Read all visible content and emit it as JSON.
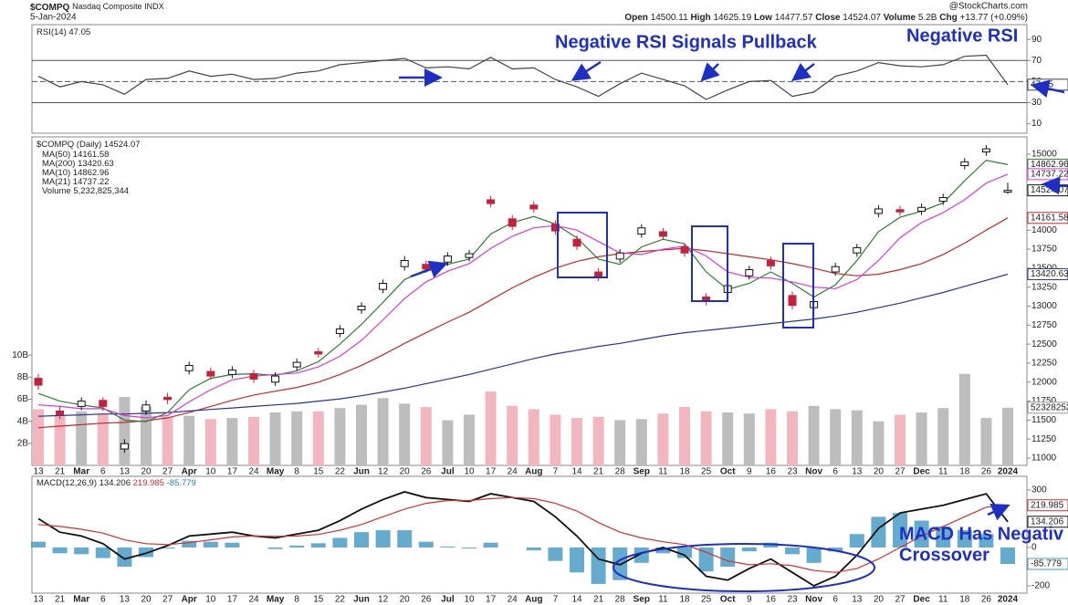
{
  "header": {
    "symbol": "$COMPQ",
    "name": "Nasdaq Composite INDX",
    "date": "5-Jan-2024",
    "source": "@StockCharts.com",
    "open_label": "Open",
    "high_label": "High",
    "low_label": "Low",
    "close_label": "Close",
    "volume_label": "Volume",
    "volume": "5.2B",
    "change_label": "Chg",
    "change": "+13.77 (+0.09%)"
  },
  "chart_data": [
    {
      "type": "line",
      "series": [
        {
          "name": "RSI(14)",
          "color": "#444444",
          "values": [
            55,
            45,
            50,
            47,
            38,
            52,
            53,
            60,
            55,
            57,
            52,
            53,
            58,
            60,
            66,
            68,
            70,
            72,
            63,
            64,
            62,
            73,
            62,
            63,
            52,
            45,
            36,
            48,
            58,
            52,
            46,
            33,
            42,
            50,
            51,
            36,
            40,
            55,
            60,
            68,
            65,
            64,
            66,
            74,
            75,
            47.05
          ]
        }
      ],
      "ylim": [
        1,
        104
      ],
      "yticks": [
        90,
        70,
        50,
        30,
        10
      ],
      "reference_lines": [
        {
          "value": 70
        },
        {
          "value": 50,
          "dashed": true
        },
        {
          "value": 30
        }
      ],
      "annotations": [
        "Negative RSI Signals Pullback",
        "Negative RSI"
      ]
    },
    {
      "type": "candlestick",
      "title": "$COMPQ (Daily)",
      "categories": [
        "13",
        "21",
        "Mar",
        "6",
        "13",
        "20",
        "27",
        "Apr",
        "10",
        "17",
        "24",
        "May",
        "8",
        "15",
        "22",
        "Jun",
        "12",
        "20",
        "26",
        "Jul",
        "10",
        "17",
        "24",
        "Aug",
        "7",
        "14",
        "21",
        "28",
        "Sep",
        "11",
        "18",
        "25",
        "Oct",
        "9",
        "16",
        "23",
        "Nov",
        "6",
        "13",
        "20",
        "27",
        "Dec",
        "11",
        "18",
        "26",
        "2024"
      ],
      "open": [
        12050,
        11620,
        11680,
        11760,
        11120,
        11620,
        11800,
        12150,
        12140,
        12100,
        12110,
        12000,
        12200,
        12400,
        12640,
        12950,
        13220,
        13520,
        13550,
        13580,
        13640,
        14400,
        14150,
        14330,
        14080,
        13880,
        13450,
        13620,
        13950,
        13980,
        13780,
        13120,
        13180,
        13400,
        13600,
        13140,
        12980,
        13450,
        13700,
        14220,
        14270,
        14250,
        14380,
        14850,
        15030,
        14500.11
      ],
      "high": [
        12110,
        11680,
        11800,
        11800,
        11250,
        11760,
        11860,
        12270,
        12190,
        12210,
        12160,
        12130,
        12310,
        12450,
        12750,
        13050,
        13350,
        13660,
        13600,
        13710,
        13740,
        14450,
        14200,
        14380,
        14130,
        13930,
        13500,
        13750,
        14080,
        14030,
        13830,
        13170,
        13320,
        13530,
        13650,
        13190,
        13110,
        13570,
        13820,
        14330,
        14320,
        14350,
        14480,
        14950,
        15120,
        14625.19
      ],
      "low": [
        11900,
        11510,
        11630,
        11620,
        11070,
        11570,
        11710,
        12100,
        12030,
        12050,
        11990,
        11950,
        12150,
        12320,
        12590,
        12900,
        13170,
        13470,
        13440,
        13530,
        13590,
        14300,
        14000,
        14230,
        13940,
        13740,
        13330,
        13570,
        13900,
        13870,
        13650,
        13010,
        13130,
        13350,
        13480,
        12960,
        12930,
        13400,
        13650,
        14170,
        14190,
        14200,
        14330,
        14800,
        14980,
        14477.57
      ],
      "close": [
        11960,
        11570,
        11750,
        11680,
        11190,
        11700,
        11770,
        12220,
        12080,
        12160,
        12040,
        12080,
        12260,
        12370,
        12700,
        13000,
        13300,
        13600,
        13490,
        13660,
        13690,
        14350,
        14050,
        14280,
        13990,
        13790,
        13380,
        13700,
        14030,
        13920,
        13700,
        13060,
        13270,
        13480,
        13530,
        13010,
        13060,
        13520,
        13770,
        14280,
        14240,
        14300,
        14430,
        14900,
        15070,
        14524.07
      ],
      "up_color": "#ffffff",
      "down_color": "#c4223c",
      "ma": [
        {
          "name": "MA(50)",
          "color": "#c62828",
          "values": [
            11400,
            11420,
            11440,
            11460,
            11470,
            11490,
            11530,
            11600,
            11680,
            11760,
            11830,
            11880,
            11930,
            12000,
            12100,
            12220,
            12360,
            12510,
            12650,
            12790,
            12920,
            13080,
            13240,
            13380,
            13500,
            13590,
            13650,
            13690,
            13720,
            13740,
            13760,
            13730,
            13690,
            13650,
            13610,
            13560,
            13500,
            13430,
            13400,
            13420,
            13480,
            13560,
            13680,
            13830,
            14000,
            14161.58
          ]
        },
        {
          "name": "MA(200)",
          "color": "#283593",
          "values": [
            11550,
            11560,
            11570,
            11580,
            11580,
            11590,
            11600,
            11620,
            11640,
            11660,
            11680,
            11700,
            11720,
            11750,
            11780,
            11820,
            11870,
            11920,
            11980,
            12040,
            12100,
            12170,
            12240,
            12310,
            12370,
            12420,
            12470,
            12510,
            12560,
            12610,
            12650,
            12680,
            12710,
            12740,
            12770,
            12800,
            12830,
            12870,
            12920,
            12980,
            13040,
            13110,
            13180,
            13260,
            13340,
            13420.63
          ]
        },
        {
          "name": "MA(10)",
          "color": "#2e7d32",
          "values": [
            11850,
            11750,
            11700,
            11660,
            11500,
            11480,
            11600,
            11900,
            12050,
            12100,
            12110,
            12090,
            12150,
            12270,
            12500,
            12760,
            13050,
            13350,
            13480,
            13550,
            13620,
            13950,
            14100,
            14180,
            14080,
            13900,
            13620,
            13550,
            13780,
            13880,
            13820,
            13450,
            13220,
            13300,
            13450,
            13300,
            13120,
            13280,
            13600,
            13980,
            14170,
            14250,
            14360,
            14650,
            14920,
            14862.96
          ]
        },
        {
          "name": "MA(21)",
          "color": "#d63ad6",
          "values": [
            11700,
            11680,
            11650,
            11650,
            11560,
            11530,
            11560,
            11740,
            11900,
            12030,
            12080,
            12100,
            12120,
            12200,
            12340,
            12550,
            12820,
            13100,
            13320,
            13460,
            13560,
            13760,
            13920,
            14030,
            14060,
            14000,
            13850,
            13700,
            13680,
            13750,
            13790,
            13660,
            13450,
            13380,
            13370,
            13320,
            13250,
            13230,
            13350,
            13600,
            13900,
            14100,
            14230,
            14400,
            14620,
            14737.22
          ]
        }
      ],
      "volume": {
        "name": "Volume",
        "legend_value_label": "5,232,825,344",
        "up_color": "#bdbdbd",
        "down_color": "#f2b6bf",
        "values": [
          5100000000,
          4600000000,
          4900000000,
          4700000000,
          6200000000,
          5300000000,
          4400000000,
          4500000000,
          4200000000,
          4300000000,
          4400000000,
          4800000000,
          4900000000,
          4900000000,
          5200000000,
          5500000000,
          6100000000,
          5600000000,
          5300000000,
          4100000000,
          4600000000,
          6700000000,
          5400000000,
          5100000000,
          4600000000,
          4300000000,
          4400000000,
          4100000000,
          4200000000,
          4700000000,
          5300000000,
          4900000000,
          4800000000,
          4700000000,
          5100000000,
          4900000000,
          5400000000,
          5100000000,
          5000000000,
          4000000000,
          4600000000,
          4800000000,
          5200000000,
          8300000000,
          4300000000,
          5232825344
        ],
        "ylim": [
          0,
          29800000000
        ],
        "yticks": [
          {
            "value": 2000000000,
            "label": "2B"
          },
          {
            "value": 4000000000,
            "label": "4B"
          },
          {
            "value": 6000000000,
            "label": "6B"
          },
          {
            "value": 8000000000,
            "label": "8B"
          },
          {
            "value": 10000000000,
            "label": "10B"
          }
        ]
      },
      "ylim": [
        10904,
        15228
      ],
      "yticks": [
        15000,
        14000,
        13750,
        13500,
        13250,
        13000,
        12750,
        12500,
        12250,
        12000,
        11750,
        11500,
        11250,
        11000
      ]
    },
    {
      "type": "macd",
      "categories": [
        "13",
        "21",
        "Mar",
        "6",
        "13",
        "20",
        "27",
        "Apr",
        "10",
        "17",
        "24",
        "May",
        "8",
        "15",
        "22",
        "Jun",
        "12",
        "20",
        "26",
        "Jul",
        "10",
        "17",
        "24",
        "Aug",
        "7",
        "14",
        "21",
        "28",
        "Sep",
        "11",
        "18",
        "25",
        "Oct",
        "9",
        "16",
        "23",
        "Nov",
        "6",
        "13",
        "20",
        "27",
        "Dec",
        "11",
        "18",
        "26",
        "2024"
      ],
      "title": "MACD(12,26,9)",
      "series": [
        {
          "name": "MACD",
          "color": "#111111",
          "values": [
            150,
            80,
            60,
            20,
            -60,
            -30,
            10,
            60,
            70,
            80,
            60,
            50,
            70,
            90,
            140,
            200,
            250,
            290,
            260,
            250,
            240,
            280,
            260,
            240,
            160,
            60,
            -60,
            -90,
            -30,
            0,
            -40,
            -150,
            -170,
            -110,
            -60,
            -130,
            -200,
            -150,
            -40,
            100,
            180,
            200,
            220,
            250,
            280,
            134.206
          ]
        },
        {
          "name": "Signal",
          "color": "#d32f2f",
          "values": [
            120,
            110,
            95,
            75,
            40,
            20,
            15,
            25,
            40,
            55,
            60,
            58,
            60,
            68,
            90,
            120,
            160,
            200,
            230,
            245,
            245,
            255,
            260,
            255,
            230,
            190,
            130,
            80,
            50,
            30,
            15,
            -25,
            -70,
            -90,
            -85,
            -95,
            -120,
            -130,
            -110,
            -60,
            0,
            60,
            110,
            160,
            210,
            219.985
          ]
        },
        {
          "name": "Histogram",
          "style": "histogram",
          "color": "#4a9cc6",
          "values": [
            30,
            -30,
            -35,
            -55,
            -100,
            -50,
            -5,
            35,
            30,
            25,
            0,
            -8,
            10,
            22,
            50,
            80,
            90,
            90,
            30,
            5,
            -5,
            25,
            0,
            -15,
            -70,
            -130,
            -190,
            -170,
            -80,
            -30,
            -55,
            -125,
            -100,
            -20,
            25,
            -35,
            -80,
            -20,
            70,
            160,
            180,
            140,
            110,
            90,
            70,
            -85.779
          ]
        }
      ],
      "ylim": [
        -238,
        371
      ],
      "yticks": [
        300,
        0,
        -200
      ],
      "annotations": [
        "MACD Has Negativ",
        "Crossover"
      ]
    }
  ]
}
